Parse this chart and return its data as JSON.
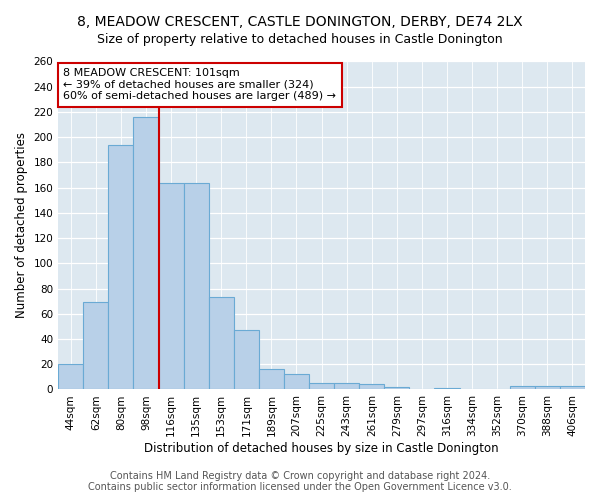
{
  "title1": "8, MEADOW CRESCENT, CASTLE DONINGTON, DERBY, DE74 2LX",
  "title2": "Size of property relative to detached houses in Castle Donington",
  "xlabel": "Distribution of detached houses by size in Castle Donington",
  "ylabel": "Number of detached properties",
  "categories": [
    "44sqm",
    "62sqm",
    "80sqm",
    "98sqm",
    "116sqm",
    "135sqm",
    "153sqm",
    "171sqm",
    "189sqm",
    "207sqm",
    "225sqm",
    "243sqm",
    "261sqm",
    "279sqm",
    "297sqm",
    "316sqm",
    "334sqm",
    "352sqm",
    "370sqm",
    "388sqm",
    "406sqm"
  ],
  "values": [
    20,
    69,
    194,
    216,
    164,
    164,
    73,
    47,
    16,
    12,
    5,
    5,
    4,
    2,
    0,
    1,
    0,
    0,
    3,
    3,
    3
  ],
  "bar_color": "#b8d0e8",
  "bar_edge_color": "#6aaad4",
  "vline_x_index": 3,
  "vline_color": "#cc0000",
  "annotation_text": "8 MEADOW CRESCENT: 101sqm\n← 39% of detached houses are smaller (324)\n60% of semi-detached houses are larger (489) →",
  "annotation_box_color": "#ffffff",
  "annotation_box_edge": "#cc0000",
  "ylim": [
    0,
    260
  ],
  "yticks": [
    0,
    20,
    40,
    60,
    80,
    100,
    120,
    140,
    160,
    180,
    200,
    220,
    240,
    260
  ],
  "footer1": "Contains HM Land Registry data © Crown copyright and database right 2024.",
  "footer2": "Contains public sector information licensed under the Open Government Licence v3.0.",
  "fig_bg_color": "#ffffff",
  "plot_bg_color": "#dde8f0",
  "title1_fontsize": 10,
  "title2_fontsize": 9,
  "tick_fontsize": 7.5,
  "axis_label_fontsize": 8.5,
  "footer_fontsize": 7,
  "annotation_fontsize": 8
}
